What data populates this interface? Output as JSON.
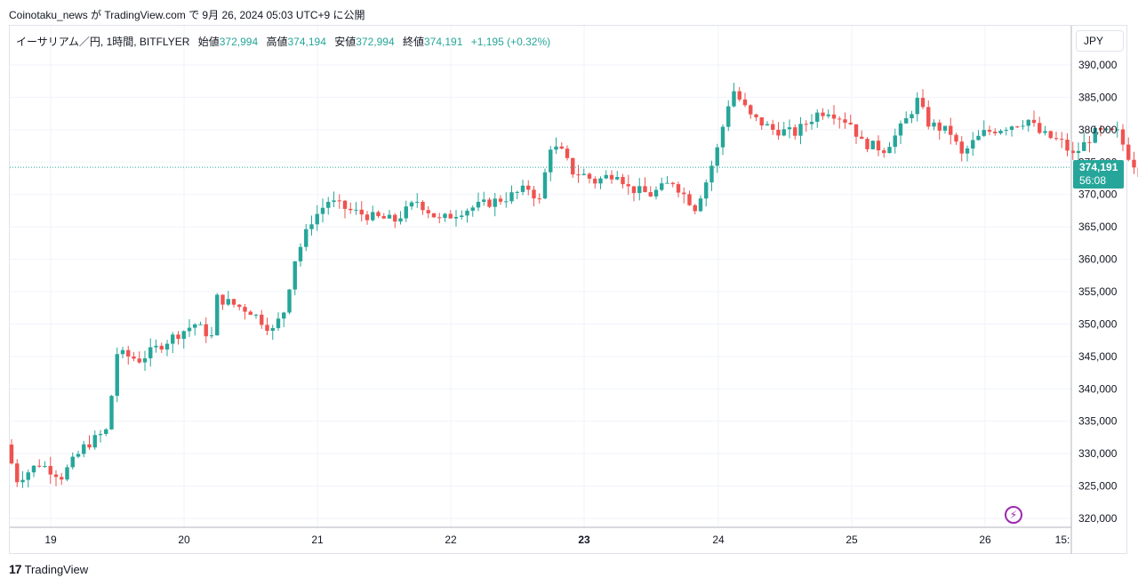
{
  "header": {
    "publish_text": "Coinotaku_news が TradingView.com で 9月 26, 2024 05:03 UTC+9 に公開"
  },
  "legend": {
    "symbol": "イーサリアム／円, 1時間, BITFLYER",
    "open_label": "始値",
    "open_value": "372,994",
    "high_label": "高値",
    "high_value": "374,194",
    "low_label": "安値",
    "low_value": "372,994",
    "close_label": "終値",
    "close_value": "374,191",
    "change": "+1,195 (+0.32%)"
  },
  "currency_button": {
    "label": "JPY"
  },
  "price_tag": {
    "price": "374,191",
    "countdown": "56:08"
  },
  "footer": {
    "brand": "TradingView",
    "logo_mark": "17"
  },
  "colors": {
    "up": "#26a69a",
    "down": "#ef5350",
    "grid": "#f0f3fa",
    "accent": "#9c27b0"
  },
  "icons": {
    "realtime": "lightning-icon"
  },
  "chart_data": {
    "type": "candlestick",
    "title": "イーサリアム／円, 1時間, BITFLYER",
    "ylabel": "JPY",
    "ylim": [
      318000,
      393000
    ],
    "y_ticks": [
      "390,000",
      "385,000",
      "380,000",
      "375,000",
      "370,000",
      "365,000",
      "360,000",
      "355,000",
      "350,000",
      "345,000",
      "340,000",
      "335,000",
      "330,000",
      "325,000",
      "320,000"
    ],
    "x_ticks": [
      "19",
      "20",
      "21",
      "22",
      "23",
      "24",
      "25",
      "26",
      "15:"
    ],
    "x_ticks_bold": [
      "23"
    ],
    "grid": true,
    "last_price": 374191,
    "ohlc_keypoints": [
      {
        "t": 0,
        "price": 331000
      },
      {
        "t": 2,
        "price": 326000
      },
      {
        "t": 6,
        "price": 328500
      },
      {
        "t": 10,
        "price": 326500
      },
      {
        "t": 14,
        "price": 331000
      },
      {
        "t": 18,
        "price": 333500
      },
      {
        "t": 19,
        "price": 339000
      },
      {
        "t": 20,
        "price": 345500
      },
      {
        "t": 24,
        "price": 344500
      },
      {
        "t": 30,
        "price": 348000
      },
      {
        "t": 34,
        "price": 350000
      },
      {
        "t": 37,
        "price": 348000
      },
      {
        "t": 38,
        "price": 354000
      },
      {
        "t": 44,
        "price": 352000
      },
      {
        "t": 48,
        "price": 349000
      },
      {
        "t": 50,
        "price": 352000
      },
      {
        "t": 52,
        "price": 360000
      },
      {
        "t": 55,
        "price": 366000
      },
      {
        "t": 58,
        "price": 369000
      },
      {
        "t": 62,
        "price": 367500
      },
      {
        "t": 66,
        "price": 366500
      },
      {
        "t": 70,
        "price": 366000
      },
      {
        "t": 74,
        "price": 369000
      },
      {
        "t": 78,
        "price": 366000
      },
      {
        "t": 82,
        "price": 367500
      },
      {
        "t": 86,
        "price": 368500
      },
      {
        "t": 90,
        "price": 369500
      },
      {
        "t": 94,
        "price": 371000
      },
      {
        "t": 96,
        "price": 369000
      },
      {
        "t": 98,
        "price": 377500
      },
      {
        "t": 100,
        "price": 376500
      },
      {
        "t": 102,
        "price": 373500
      },
      {
        "t": 104,
        "price": 373000
      },
      {
        "t": 106,
        "price": 372000
      },
      {
        "t": 110,
        "price": 373500
      },
      {
        "t": 112,
        "price": 371000
      },
      {
        "t": 116,
        "price": 370000
      },
      {
        "t": 120,
        "price": 372000
      },
      {
        "t": 124,
        "price": 368000
      },
      {
        "t": 126,
        "price": 372000
      },
      {
        "t": 128,
        "price": 377000
      },
      {
        "t": 130,
        "price": 384000
      },
      {
        "t": 131,
        "price": 386000
      },
      {
        "t": 134,
        "price": 382000
      },
      {
        "t": 138,
        "price": 380000
      },
      {
        "t": 142,
        "price": 379500
      },
      {
        "t": 146,
        "price": 382500
      },
      {
        "t": 148,
        "price": 383000
      },
      {
        "t": 152,
        "price": 381000
      },
      {
        "t": 154,
        "price": 378000
      },
      {
        "t": 158,
        "price": 377000
      },
      {
        "t": 160,
        "price": 379000
      },
      {
        "t": 162,
        "price": 381500
      },
      {
        "t": 164,
        "price": 384500
      },
      {
        "t": 166,
        "price": 381000
      },
      {
        "t": 170,
        "price": 379500
      },
      {
        "t": 172,
        "price": 376000
      },
      {
        "t": 174,
        "price": 378000
      },
      {
        "t": 176,
        "price": 379500
      },
      {
        "t": 180,
        "price": 380500
      },
      {
        "t": 184,
        "price": 381500
      },
      {
        "t": 186,
        "price": 379500
      },
      {
        "t": 190,
        "price": 378000
      },
      {
        "t": 192,
        "price": 376000
      },
      {
        "t": 196,
        "price": 379500
      },
      {
        "t": 200,
        "price": 379500
      },
      {
        "t": 202,
        "price": 376000
      },
      {
        "t": 204,
        "price": 373500
      },
      {
        "t": 206,
        "price": 373000
      },
      {
        "t": 207,
        "price": 374191
      }
    ]
  }
}
